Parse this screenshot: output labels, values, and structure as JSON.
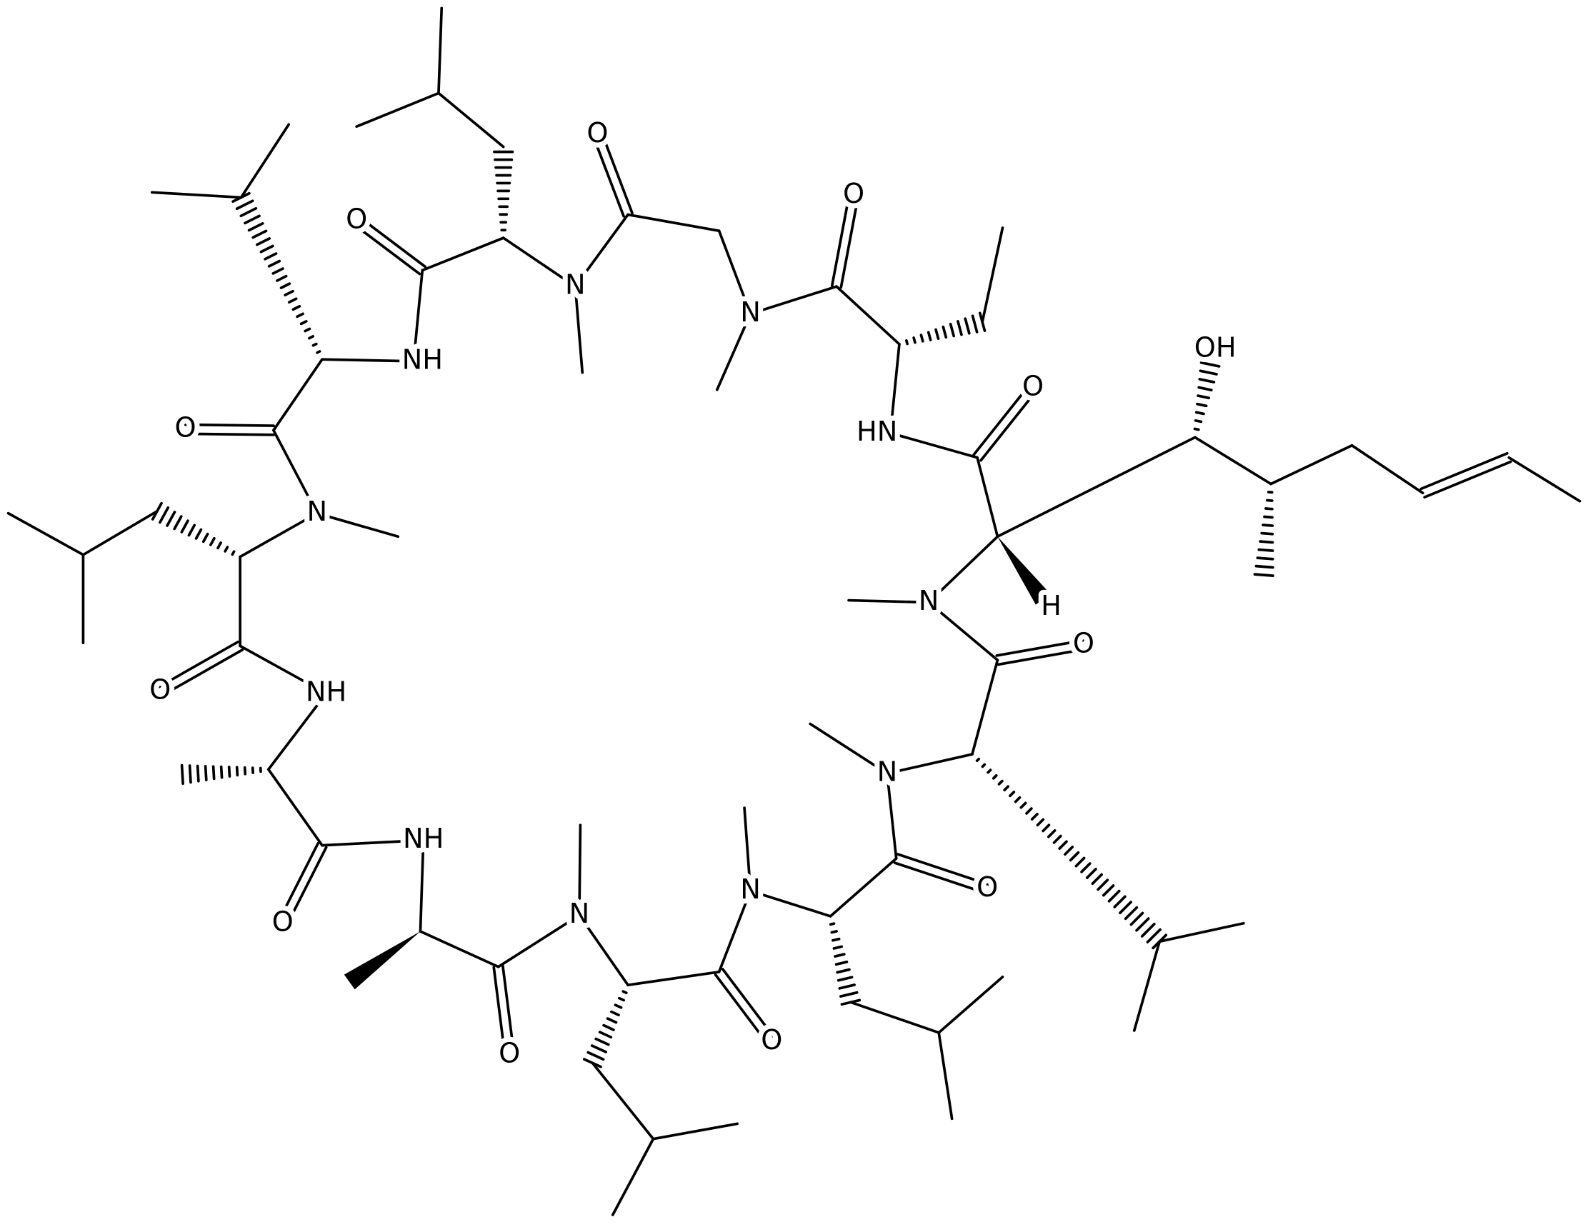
{
  "atom_labels": [
    "O",
    "O",
    "O",
    "N",
    "N",
    "NH",
    "HN",
    "OH",
    "O",
    "O",
    "N",
    "H",
    "N",
    "O",
    "O",
    "NH",
    "N",
    "NH",
    "N",
    "N",
    "O",
    "O",
    "O",
    "O"
  ]
}
